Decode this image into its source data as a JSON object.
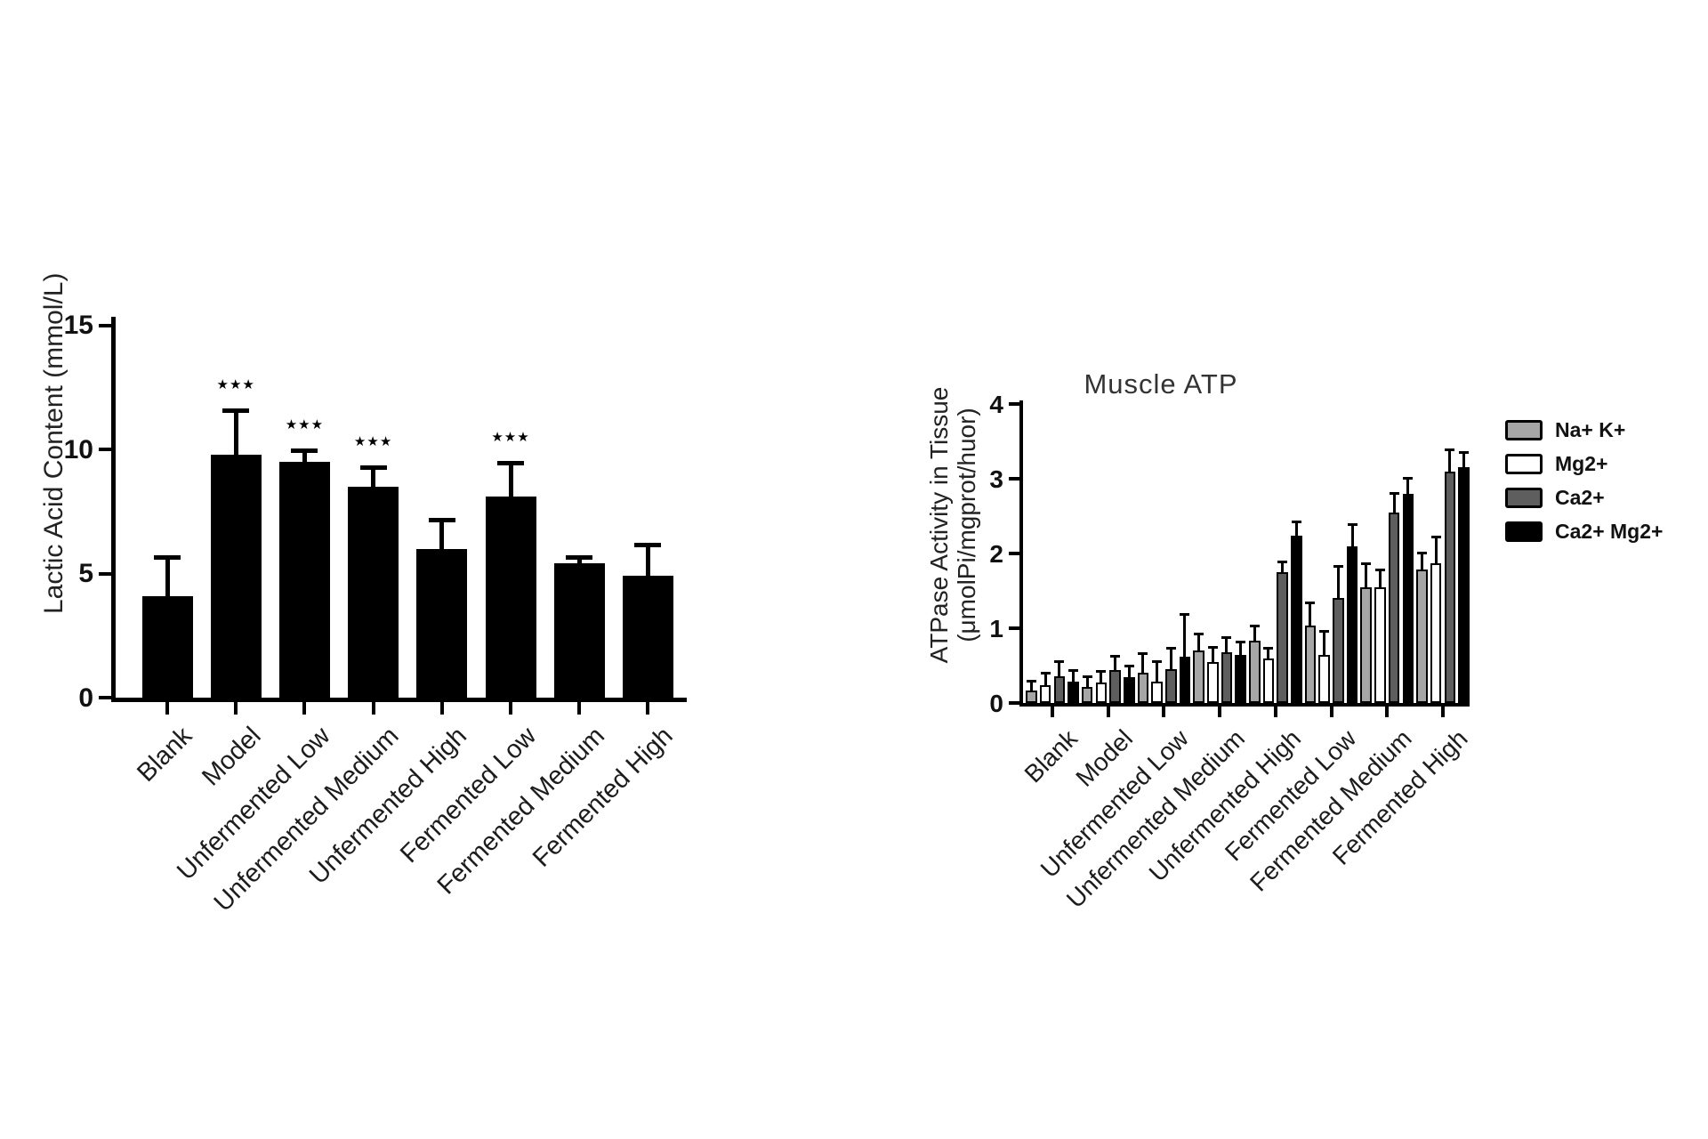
{
  "figure": {
    "background": "#ffffff",
    "categories": [
      "Blank",
      "Model",
      "Unfermented Low",
      "Unfermented Medium",
      "Unfermented High",
      "Fermented Low",
      "Fermented Medium",
      "Fermented High"
    ]
  },
  "charts": [
    {
      "id": "lactic",
      "type": "bar",
      "title": "",
      "ylabel": "Lactic Acid Content (mmol/L)",
      "bar_color": "#000000",
      "ylim": [
        0,
        15
      ],
      "yticks": [
        0,
        5,
        10,
        15
      ],
      "grid": false,
      "categories": [
        "Blank",
        "Model",
        "Unfermented Low",
        "Unfermented Medium",
        "Unfermented High",
        "Fermented Low",
        "Fermented Medium",
        "Fermented High"
      ],
      "values": [
        4.1,
        9.8,
        9.5,
        8.5,
        6.0,
        8.1,
        5.4,
        4.9
      ],
      "errors_upper": [
        5.6,
        11.5,
        9.9,
        9.2,
        7.1,
        9.4,
        5.6,
        6.1
      ],
      "significance": [
        "",
        "***",
        "***",
        "***",
        "",
        "***",
        "",
        ""
      ]
    },
    {
      "id": "muscle_atp",
      "type": "grouped-bar",
      "title": "Muscle ATP",
      "ylabel_line1": "ATPase Activity in Tissue",
      "ylabel_line2": "(μmolPi/mgprot/huor)",
      "ylim": [
        0,
        4
      ],
      "yticks": [
        0,
        1,
        2,
        3,
        4
      ],
      "grid": false,
      "legend_position": "right",
      "categories": [
        "Blank",
        "Model",
        "Unfermented Low",
        "Unfermented Medium",
        "Unfermented High",
        "Fermented Low",
        "Fermented Medium",
        "Fermented High"
      ],
      "series": [
        {
          "name": "Na+ K+",
          "color": "#a6a6a6",
          "values": [
            0.17,
            0.21,
            0.4,
            0.7,
            0.83,
            1.03,
            1.55,
            1.78
          ],
          "errors_upper": [
            0.29,
            0.35,
            0.65,
            0.92,
            1.02,
            1.33,
            1.86,
            2.0
          ]
        },
        {
          "name": "Mg2+",
          "color": "#ffffff",
          "values": [
            0.24,
            0.27,
            0.28,
            0.55,
            0.6,
            0.64,
            1.55,
            1.87
          ],
          "errors_upper": [
            0.39,
            0.42,
            0.55,
            0.74,
            0.73,
            0.95,
            1.77,
            2.22
          ]
        },
        {
          "name": "Ca2+",
          "color": "#5e5e5e",
          "values": [
            0.36,
            0.44,
            0.45,
            0.68,
            1.75,
            1.4,
            2.55,
            3.1
          ],
          "errors_upper": [
            0.55,
            0.62,
            0.73,
            0.87,
            1.88,
            1.82,
            2.8,
            3.38
          ]
        },
        {
          "name": "Ca2+ Mg2+",
          "color": "#000000",
          "values": [
            0.28,
            0.34,
            0.62,
            0.64,
            2.24,
            2.1,
            2.8,
            3.15
          ],
          "errors_upper": [
            0.43,
            0.49,
            1.18,
            0.81,
            2.42,
            2.38,
            3.0,
            3.35
          ]
        }
      ]
    }
  ]
}
